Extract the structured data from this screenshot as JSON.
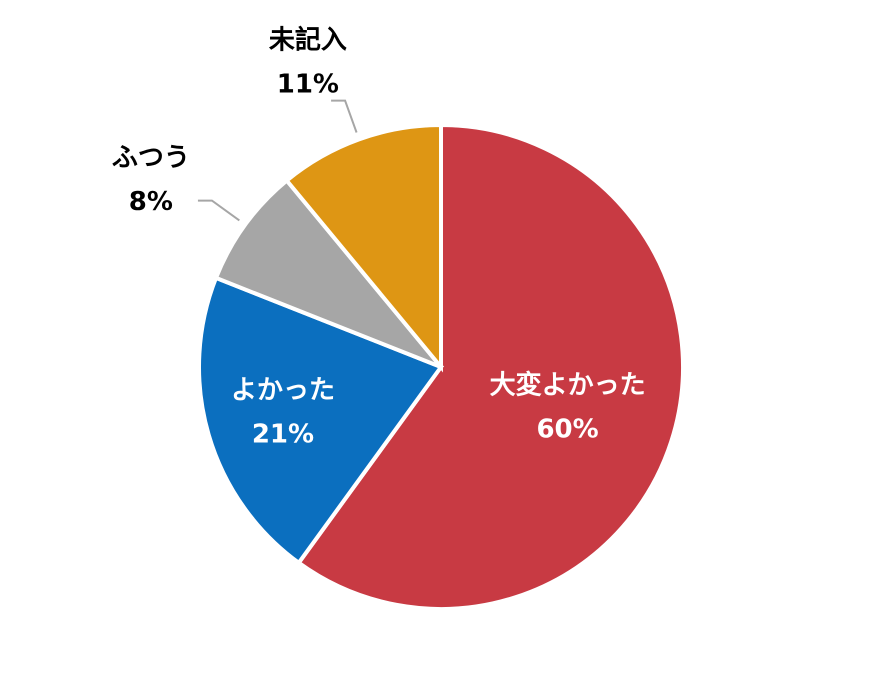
{
  "chart_data": {
    "type": "pie",
    "categories": [
      "大変よかった",
      "よかった",
      "ふつう",
      "未記入"
    ],
    "values": [
      60,
      21,
      8,
      11
    ],
    "value_labels": [
      "60%",
      "21%",
      "8%",
      "11%"
    ],
    "colors": [
      "#c83a43",
      "#0b6fbf",
      "#a6a6a6",
      "#de9614"
    ]
  }
}
